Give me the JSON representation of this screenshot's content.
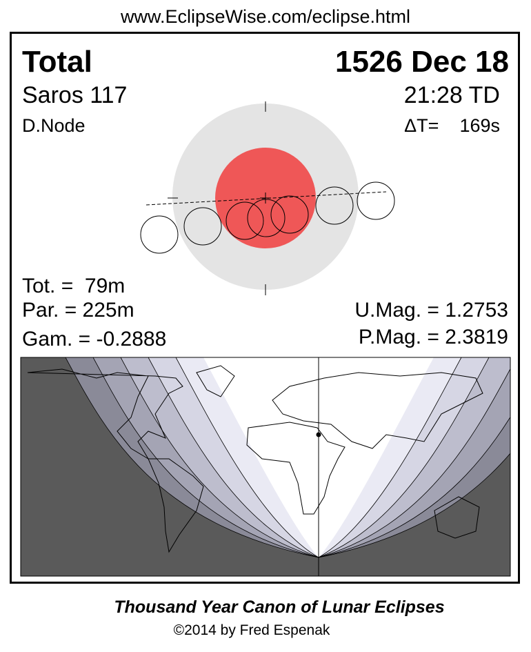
{
  "header": {
    "url": "www.EclipseWise.com/eclipse.html"
  },
  "panel": {
    "type": "Total",
    "date": "1526 Dec 18",
    "saros": "Saros 117",
    "time": "21:28 TD",
    "node": "D.Node",
    "delta_t": "ΔT=    169s",
    "total": "Tot. =  79m",
    "partial": "Par. = 225m",
    "gamma": "Gam. = -0.2888",
    "umbral_mag": "U.Mag. = 1.2753",
    "penumbral_mag": "P.Mag. = 2.3819"
  },
  "footer": {
    "title": "Thousand Year Canon of Lunar Eclipses",
    "copyright": "©2014 by Fred Espenak"
  }
}
